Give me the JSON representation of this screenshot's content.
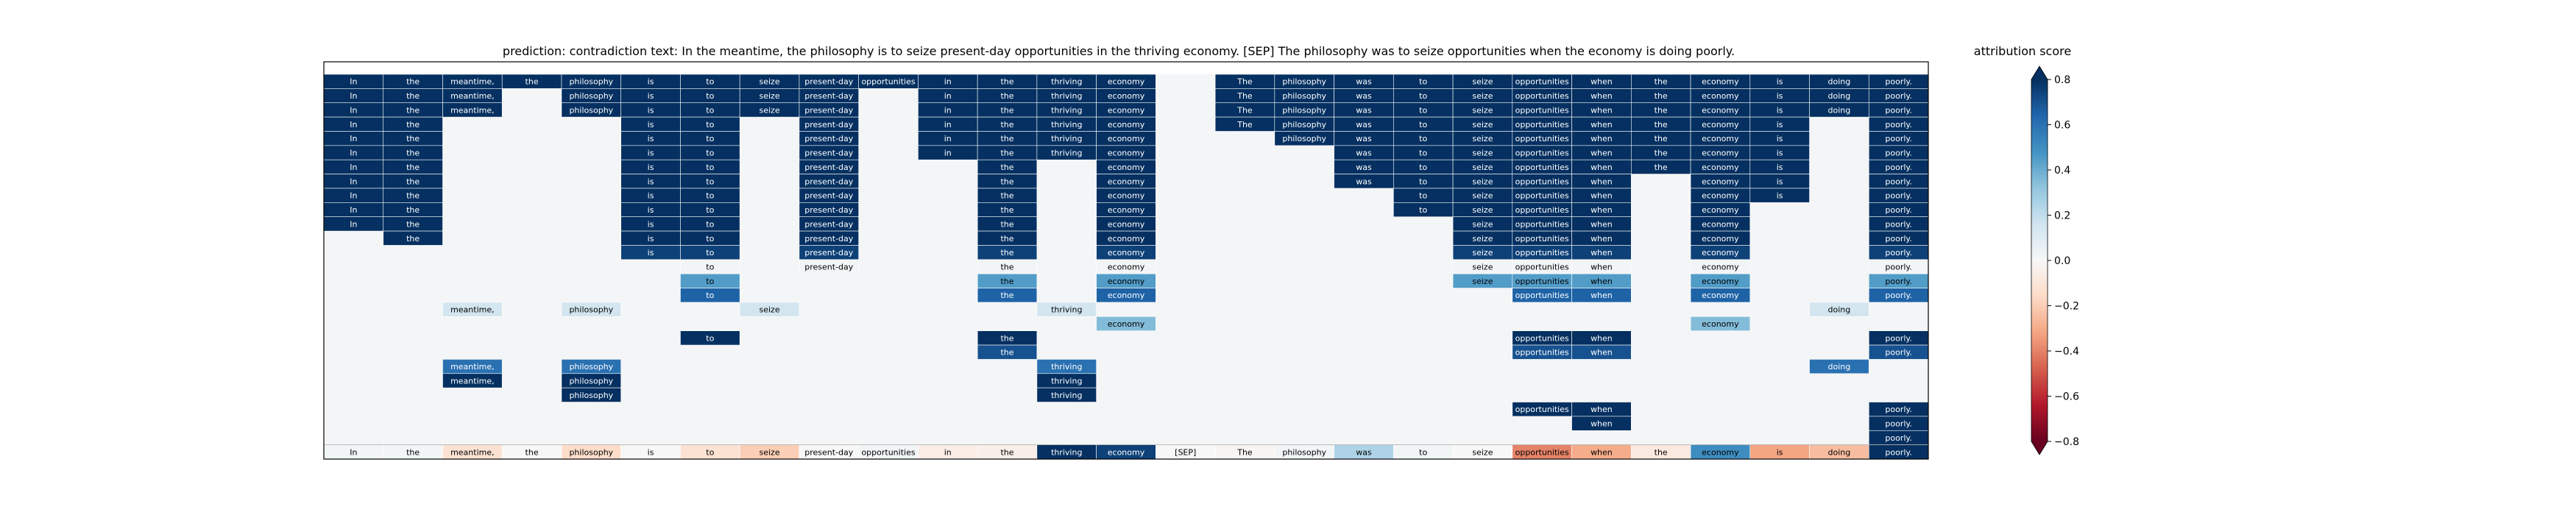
{
  "chart_data": {
    "type": "heatmap",
    "title": "prediction:  contradiction     text:  In the meantime, the philosophy is to seize present-day opportunities in the thriving economy. [SEP] The philosophy was to seize opportunities when the economy is doing poorly.",
    "tokens": [
      "In",
      "the",
      "meantime,",
      "the",
      "philosophy",
      "is",
      "to",
      "seize",
      "present-day",
      "opportunities",
      "in",
      "the",
      "thriving",
      "economy",
      "[SEP]",
      "The",
      "philosophy",
      "was",
      "to",
      "seize",
      "opportunities",
      "when",
      "the",
      "economy",
      "is",
      "doing",
      "poorly."
    ],
    "rows": [
      {
        "cells": [
          [
            0,
            0.8
          ],
          [
            1,
            0.8
          ],
          [
            2,
            0.8
          ],
          [
            3,
            0.8
          ],
          [
            4,
            0.8
          ],
          [
            5,
            0.8
          ],
          [
            6,
            0.8
          ],
          [
            7,
            0.8
          ],
          [
            8,
            0.8
          ],
          [
            9,
            0.8
          ],
          [
            10,
            0.8
          ],
          [
            11,
            0.8
          ],
          [
            12,
            0.8
          ],
          [
            13,
            0.8
          ],
          [
            15,
            0.8
          ],
          [
            16,
            0.8
          ],
          [
            17,
            0.8
          ],
          [
            18,
            0.8
          ],
          [
            19,
            0.8
          ],
          [
            20,
            0.8
          ],
          [
            21,
            0.8
          ],
          [
            22,
            0.8
          ],
          [
            23,
            0.8
          ],
          [
            24,
            0.8
          ],
          [
            25,
            0.8
          ],
          [
            26,
            0.8
          ]
        ]
      },
      {
        "cells": [
          [
            0,
            0.8
          ],
          [
            1,
            0.8
          ],
          [
            2,
            0.8
          ],
          [
            4,
            0.8
          ],
          [
            5,
            0.8
          ],
          [
            6,
            0.8
          ],
          [
            7,
            0.8
          ],
          [
            8,
            0.8
          ],
          [
            10,
            0.8
          ],
          [
            11,
            0.8
          ],
          [
            12,
            0.8
          ],
          [
            13,
            0.8
          ],
          [
            15,
            0.8
          ],
          [
            16,
            0.8
          ],
          [
            17,
            0.8
          ],
          [
            18,
            0.8
          ],
          [
            19,
            0.8
          ],
          [
            20,
            0.8
          ],
          [
            21,
            0.8
          ],
          [
            22,
            0.8
          ],
          [
            23,
            0.8
          ],
          [
            24,
            0.8
          ],
          [
            25,
            0.8
          ],
          [
            26,
            0.8
          ]
        ]
      },
      {
        "cells": [
          [
            0,
            0.8
          ],
          [
            1,
            0.8
          ],
          [
            2,
            0.8
          ],
          [
            4,
            0.8
          ],
          [
            5,
            0.8
          ],
          [
            6,
            0.8
          ],
          [
            7,
            0.8
          ],
          [
            8,
            0.8
          ],
          [
            10,
            0.8
          ],
          [
            11,
            0.8
          ],
          [
            12,
            0.8
          ],
          [
            13,
            0.8
          ],
          [
            15,
            0.8
          ],
          [
            16,
            0.8
          ],
          [
            17,
            0.8
          ],
          [
            18,
            0.8
          ],
          [
            19,
            0.8
          ],
          [
            20,
            0.8
          ],
          [
            21,
            0.8
          ],
          [
            22,
            0.8
          ],
          [
            23,
            0.8
          ],
          [
            24,
            0.8
          ],
          [
            25,
            0.8
          ],
          [
            26,
            0.8
          ]
        ]
      },
      {
        "cells": [
          [
            0,
            0.8
          ],
          [
            1,
            0.8
          ],
          [
            5,
            0.8
          ],
          [
            6,
            0.8
          ],
          [
            8,
            0.8
          ],
          [
            10,
            0.8
          ],
          [
            11,
            0.8
          ],
          [
            12,
            0.8
          ],
          [
            13,
            0.8
          ],
          [
            15,
            0.8
          ],
          [
            16,
            0.8
          ],
          [
            17,
            0.8
          ],
          [
            18,
            0.8
          ],
          [
            19,
            0.8
          ],
          [
            20,
            0.8
          ],
          [
            21,
            0.8
          ],
          [
            22,
            0.8
          ],
          [
            23,
            0.8
          ],
          [
            24,
            0.8
          ],
          [
            26,
            0.8
          ]
        ]
      },
      {
        "cells": [
          [
            0,
            0.8
          ],
          [
            1,
            0.8
          ],
          [
            5,
            0.8
          ],
          [
            6,
            0.8
          ],
          [
            8,
            0.8
          ],
          [
            10,
            0.8
          ],
          [
            11,
            0.8
          ],
          [
            12,
            0.8
          ],
          [
            13,
            0.8
          ],
          [
            16,
            0.8
          ],
          [
            17,
            0.8
          ],
          [
            18,
            0.8
          ],
          [
            19,
            0.8
          ],
          [
            20,
            0.8
          ],
          [
            21,
            0.8
          ],
          [
            22,
            0.8
          ],
          [
            23,
            0.8
          ],
          [
            24,
            0.8
          ],
          [
            26,
            0.8
          ]
        ]
      },
      {
        "cells": [
          [
            0,
            0.8
          ],
          [
            1,
            0.8
          ],
          [
            5,
            0.8
          ],
          [
            6,
            0.8
          ],
          [
            8,
            0.8
          ],
          [
            10,
            0.8
          ],
          [
            11,
            0.8
          ],
          [
            12,
            0.8
          ],
          [
            13,
            0.8
          ],
          [
            17,
            0.8
          ],
          [
            18,
            0.8
          ],
          [
            19,
            0.8
          ],
          [
            20,
            0.8
          ],
          [
            21,
            0.8
          ],
          [
            22,
            0.8
          ],
          [
            23,
            0.8
          ],
          [
            24,
            0.8
          ],
          [
            26,
            0.8
          ]
        ]
      },
      {
        "cells": [
          [
            0,
            0.8
          ],
          [
            1,
            0.8
          ],
          [
            5,
            0.8
          ],
          [
            6,
            0.8
          ],
          [
            8,
            0.8
          ],
          [
            11,
            0.8
          ],
          [
            13,
            0.8
          ],
          [
            17,
            0.8
          ],
          [
            18,
            0.8
          ],
          [
            19,
            0.8
          ],
          [
            20,
            0.8
          ],
          [
            21,
            0.8
          ],
          [
            22,
            0.8
          ],
          [
            23,
            0.8
          ],
          [
            24,
            0.8
          ],
          [
            26,
            0.8
          ]
        ]
      },
      {
        "cells": [
          [
            0,
            0.8
          ],
          [
            1,
            0.8
          ],
          [
            5,
            0.8
          ],
          [
            6,
            0.8
          ],
          [
            8,
            0.8
          ],
          [
            11,
            0.8
          ],
          [
            13,
            0.8
          ],
          [
            17,
            0.8
          ],
          [
            18,
            0.8
          ],
          [
            19,
            0.8
          ],
          [
            20,
            0.8
          ],
          [
            21,
            0.8
          ],
          [
            23,
            0.8
          ],
          [
            24,
            0.8
          ],
          [
            26,
            0.8
          ]
        ]
      },
      {
        "cells": [
          [
            0,
            0.8
          ],
          [
            1,
            0.8
          ],
          [
            5,
            0.8
          ],
          [
            6,
            0.8
          ],
          [
            8,
            0.8
          ],
          [
            11,
            0.8
          ],
          [
            13,
            0.8
          ],
          [
            18,
            0.8
          ],
          [
            19,
            0.8
          ],
          [
            20,
            0.8
          ],
          [
            21,
            0.8
          ],
          [
            23,
            0.8
          ],
          [
            24,
            0.8
          ],
          [
            26,
            0.8
          ]
        ]
      },
      {
        "cells": [
          [
            0,
            0.8
          ],
          [
            1,
            0.8
          ],
          [
            5,
            0.8
          ],
          [
            6,
            0.8
          ],
          [
            8,
            0.8
          ],
          [
            11,
            0.8
          ],
          [
            13,
            0.8
          ],
          [
            18,
            0.8
          ],
          [
            19,
            0.8
          ],
          [
            20,
            0.8
          ],
          [
            21,
            0.8
          ],
          [
            23,
            0.8
          ],
          [
            26,
            0.8
          ]
        ]
      },
      {
        "cells": [
          [
            0,
            0.8
          ],
          [
            1,
            0.8
          ],
          [
            5,
            0.8
          ],
          [
            6,
            0.8
          ],
          [
            8,
            0.8
          ],
          [
            11,
            0.8
          ],
          [
            13,
            0.8
          ],
          [
            19,
            0.8
          ],
          [
            20,
            0.8
          ],
          [
            21,
            0.8
          ],
          [
            23,
            0.8
          ],
          [
            26,
            0.8
          ]
        ]
      },
      {
        "cells": [
          [
            1,
            0.8
          ],
          [
            5,
            0.8
          ],
          [
            6,
            0.8
          ],
          [
            8,
            0.8
          ],
          [
            11,
            0.8
          ],
          [
            13,
            0.8
          ],
          [
            19,
            0.8
          ],
          [
            20,
            0.8
          ],
          [
            21,
            0.8
          ],
          [
            23,
            0.8
          ],
          [
            26,
            0.8
          ]
        ]
      },
      {
        "cells": [
          [
            5,
            0.75
          ],
          [
            6,
            0.75
          ],
          [
            8,
            0.75
          ],
          [
            11,
            0.75
          ],
          [
            13,
            0.75
          ],
          [
            19,
            0.75
          ],
          [
            20,
            0.75
          ],
          [
            21,
            0.75
          ],
          [
            23,
            0.75
          ],
          [
            26,
            0.75
          ]
        ]
      },
      {
        "cells": [
          [
            6,
            0.02
          ],
          [
            8,
            0.02
          ],
          [
            11,
            0.02
          ],
          [
            13,
            0.02
          ],
          [
            19,
            0.02
          ],
          [
            20,
            0.02
          ],
          [
            21,
            0.02
          ],
          [
            23,
            0.02
          ],
          [
            26,
            0.02
          ]
        ]
      },
      {
        "cells": [
          [
            6,
            0.45
          ],
          [
            11,
            0.45
          ],
          [
            13,
            0.45
          ],
          [
            19,
            0.45
          ],
          [
            20,
            0.45
          ],
          [
            21,
            0.45
          ],
          [
            23,
            0.45
          ],
          [
            26,
            0.45
          ]
        ]
      },
      {
        "cells": [
          [
            6,
            0.65
          ],
          [
            11,
            0.65
          ],
          [
            13,
            0.65
          ],
          [
            20,
            0.65
          ],
          [
            21,
            0.65
          ],
          [
            23,
            0.65
          ],
          [
            26,
            0.65
          ]
        ]
      },
      {
        "cells": [
          [
            2,
            0.15
          ],
          [
            4,
            0.15
          ],
          [
            7,
            0.15
          ],
          [
            12,
            0.15
          ],
          [
            25,
            0.15
          ]
        ]
      },
      {
        "cells": [
          [
            13,
            0.35
          ],
          [
            23,
            0.35
          ]
        ]
      },
      {
        "cells": [
          [
            6,
            0.8
          ],
          [
            11,
            0.8
          ],
          [
            20,
            0.8
          ],
          [
            21,
            0.8
          ],
          [
            26,
            0.8
          ]
        ]
      },
      {
        "cells": [
          [
            11,
            0.7
          ],
          [
            20,
            0.7
          ],
          [
            21,
            0.7
          ],
          [
            26,
            0.7
          ]
        ]
      },
      {
        "cells": [
          [
            2,
            0.6
          ],
          [
            4,
            0.6
          ],
          [
            12,
            0.6
          ],
          [
            25,
            0.6
          ]
        ]
      },
      {
        "cells": [
          [
            2,
            0.8
          ],
          [
            4,
            0.8
          ],
          [
            12,
            0.8
          ]
        ]
      },
      {
        "cells": [
          [
            4,
            0.8
          ],
          [
            12,
            0.8
          ]
        ]
      },
      {
        "cells": [
          [
            20,
            0.8
          ],
          [
            21,
            0.8
          ],
          [
            26,
            0.8
          ]
        ]
      },
      {
        "cells": [
          [
            21,
            0.8
          ],
          [
            26,
            0.8
          ]
        ]
      },
      {
        "cells": [
          [
            26,
            0.8
          ]
        ]
      }
    ],
    "summary_values": [
      0.02,
      0.02,
      -0.12,
      0.0,
      -0.15,
      0.0,
      -0.12,
      -0.2,
      0.0,
      0.02,
      -0.06,
      -0.05,
      0.8,
      0.75,
      0.0,
      -0.02,
      0.02,
      0.25,
      0.02,
      0.0,
      -0.4,
      -0.3,
      -0.08,
      0.5,
      -0.32,
      -0.25,
      0.8
    ],
    "colorbar": {
      "label": "attribution score",
      "min": -0.8,
      "max": 0.8,
      "ticks": [
        "0.8",
        "0.6",
        "0.4",
        "0.2",
        "0.0",
        "−0.2",
        "−0.4",
        "−0.6",
        "−0.8"
      ],
      "tick_values": [
        0.8,
        0.6,
        0.4,
        0.2,
        0.0,
        -0.2,
        -0.4,
        -0.6,
        -0.8
      ]
    }
  },
  "colors": {
    "low": "#67001f",
    "mid": "#f7f7f7",
    "high": "#053061",
    "empty": "#f4f5f6",
    "frame": "#000000"
  }
}
